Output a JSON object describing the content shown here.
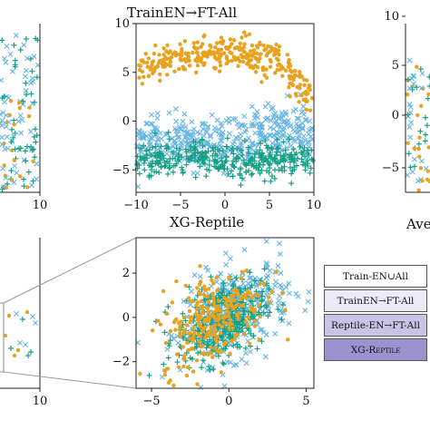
{
  "colors": {
    "orange": "#e8a21f",
    "blue": "#67b5e3",
    "teal": "#16a085",
    "frame": "#222222",
    "zoom_lines": "#9a9a9a"
  },
  "chart_data": [
    {
      "type": "scatter",
      "title": "",
      "x_ticks": [
        "10"
      ],
      "y_ticks": [],
      "series": [
        {
          "marker": "circle",
          "color": "#e8a21f",
          "values": []
        },
        {
          "marker": "x",
          "color": "#67b5e3",
          "values": []
        },
        {
          "marker": "plus",
          "color": "#16a085",
          "values": []
        }
      ]
    },
    {
      "type": "scatter",
      "title": "TrainEN→FT-All",
      "xlim": [
        -10,
        10
      ],
      "ylim": [
        -7.3,
        10
      ],
      "x_ticks": [
        "−10",
        "−5",
        "0",
        "5",
        "10"
      ],
      "y_ticks": [
        "10",
        "5",
        "0",
        "−5"
      ],
      "series": [
        {
          "marker": "circle",
          "color": "#e8a21f",
          "cluster": {
            "x_range": [
              -10,
              10
            ],
            "y_center": 6.5,
            "y_spread": 1.6
          }
        },
        {
          "marker": "x",
          "color": "#67b5e3",
          "cluster": {
            "x_range": [
              -10,
              10
            ],
            "y_center": -2.2,
            "y_spread": 1.3
          }
        },
        {
          "marker": "plus",
          "color": "#16a085",
          "cluster": {
            "x_range": [
              -10,
              10
            ],
            "y_center": -4.0,
            "y_spread": 0.9
          }
        }
      ]
    },
    {
      "type": "scatter",
      "title": "",
      "x_ticks": [],
      "y_ticks": [
        "10",
        "5",
        "0",
        "−5"
      ],
      "series": []
    },
    {
      "type": "scatter",
      "title": "",
      "x_ticks": [
        "10"
      ],
      "y_ticks": [],
      "series": []
    },
    {
      "type": "scatter",
      "title": "XG-Reptile",
      "xlim": [
        -6,
        5.5
      ],
      "ylim": [
        -3.2,
        3.6
      ],
      "x_ticks": [
        "−5",
        "0",
        "5"
      ],
      "y_ticks": [
        "2",
        "0",
        "−2"
      ],
      "series": [
        {
          "marker": "circle",
          "color": "#e8a21f",
          "cluster": {
            "x_center": -1.0,
            "y_center": 0.0,
            "spread": 1.7
          }
        },
        {
          "marker": "x",
          "color": "#67b5e3",
          "cluster": {
            "x_center": 0.5,
            "y_center": 0.3,
            "spread": 1.7
          }
        },
        {
          "marker": "plus",
          "color": "#16a085",
          "cluster": {
            "x_center": -0.5,
            "y_center": -0.2,
            "spread": 1.4
          }
        }
      ]
    }
  ],
  "partial_title_right": "Ave",
  "legend": {
    "items": [
      {
        "text": "Train-EN∪All",
        "bg": "#ffffff"
      },
      {
        "text": "TrainEN→FT-All",
        "bg": "#eceaf6"
      },
      {
        "text": "Reptile-EN→FT-All",
        "bg": "#c9c4e6"
      },
      {
        "text": "XG-Reptile",
        "bg": "#9b93cf"
      }
    ]
  }
}
